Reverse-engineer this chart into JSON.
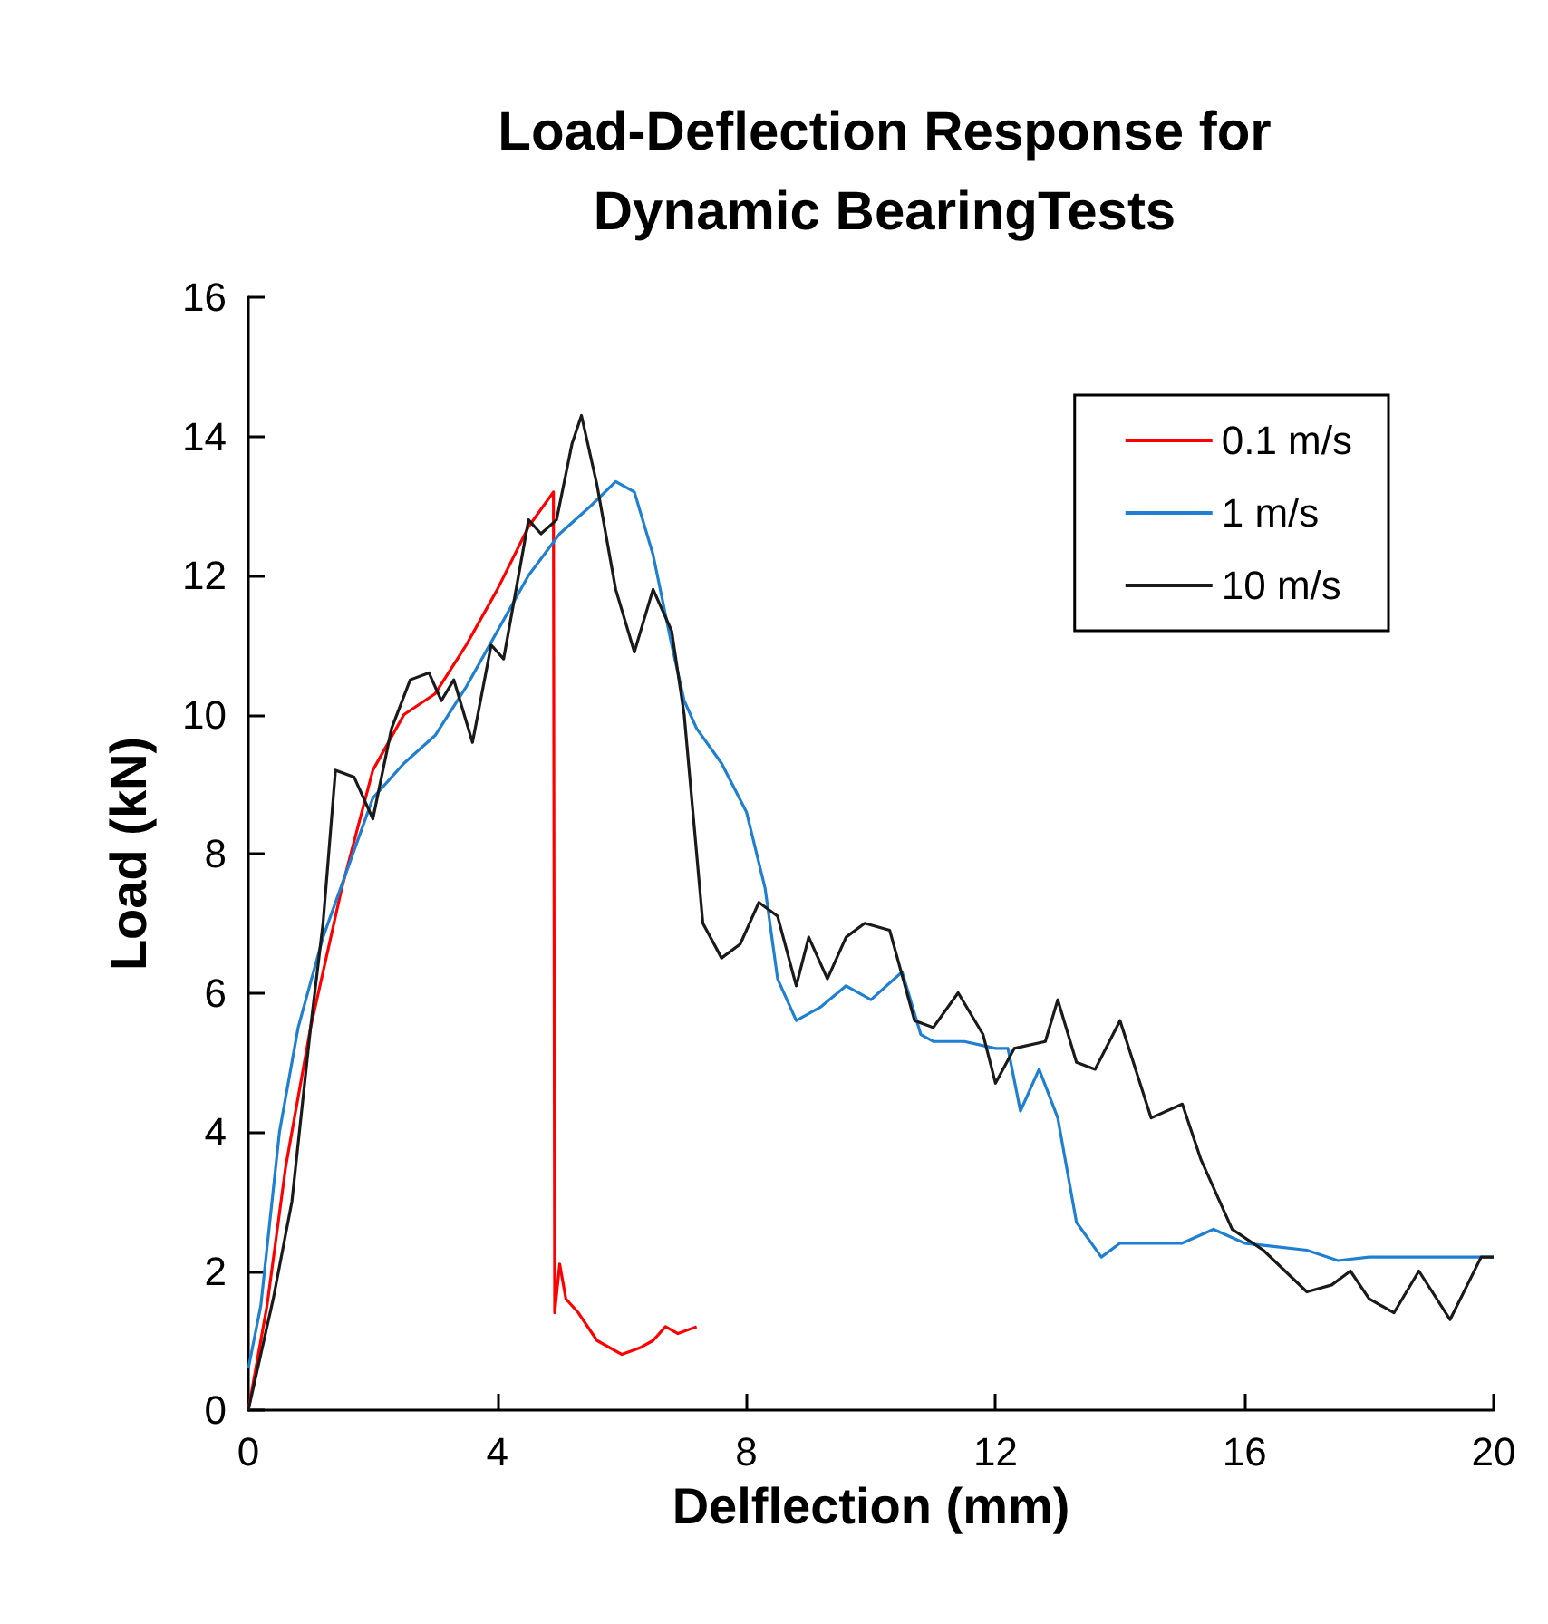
{
  "chart_data": {
    "type": "line",
    "title": "Load-Deflection Response for\nDynamic BearingTests",
    "xlabel": "Delflection (mm)",
    "ylabel": "Load (kN)",
    "xlim": [
      0,
      20
    ],
    "xticks": [
      0,
      4,
      8,
      12,
      16,
      20
    ],
    "ylim": [
      0,
      16
    ],
    "yticks": [
      0,
      2,
      4,
      6,
      8,
      10,
      12,
      14,
      16
    ],
    "legend": "top right",
    "marker": "none",
    "line_style": "solid",
    "series": [
      {
        "name": "0.1 m/s",
        "color": "#ff0000",
        "x": [
          0,
          0.3,
          0.6,
          1,
          1.5,
          2,
          2.5,
          3,
          3.5,
          4,
          4.5,
          4.9,
          4.92,
          5,
          5.1,
          5.3,
          5.6,
          6,
          6.3,
          6.5,
          6.7,
          6.9,
          7.2
        ],
        "values": [
          0,
          1.5,
          3.5,
          5.5,
          7.5,
          9.2,
          10,
          10.3,
          11,
          11.8,
          12.7,
          13.2,
          1.4,
          2.1,
          1.6,
          1.4,
          1,
          0.8,
          0.9,
          1,
          1.2,
          1.1,
          1.2
        ]
      },
      {
        "name": "1 m/s",
        "color": "#1f7fd0",
        "x": [
          0,
          0.2,
          0.5,
          0.8,
          1.2,
          1.6,
          2,
          2.5,
          3,
          3.5,
          4,
          4.5,
          5,
          5.5,
          5.9,
          6.2,
          6.5,
          6.8,
          7,
          7.2,
          7.6,
          8,
          8.3,
          8.5,
          8.8,
          9.2,
          9.6,
          10,
          10.5,
          10.8,
          11,
          11.5,
          12,
          12.2,
          12.4,
          12.7,
          13,
          13.3,
          13.7,
          14,
          14.5,
          15,
          15.5,
          16,
          16.5,
          17,
          17.5,
          18,
          19,
          20
        ],
        "values": [
          0.6,
          1.5,
          4,
          5.5,
          6.8,
          7.8,
          8.8,
          9.3,
          9.7,
          10.4,
          11.2,
          12,
          12.6,
          13,
          13.35,
          13.2,
          12.3,
          11,
          10.2,
          9.8,
          9.3,
          8.6,
          7.5,
          6.2,
          5.6,
          5.8,
          6.1,
          5.9,
          6.3,
          5.4,
          5.3,
          5.3,
          5.2,
          5.2,
          4.3,
          4.9,
          4.2,
          2.7,
          2.2,
          2.4,
          2.4,
          2.4,
          2.6,
          2.4,
          2.35,
          2.3,
          2.15,
          2.2,
          2.2,
          2.2
        ]
      },
      {
        "name": "10 m/s",
        "color": "#1a1a1a",
        "x": [
          0,
          0.4,
          0.7,
          1,
          1.2,
          1.4,
          1.7,
          2,
          2.3,
          2.6,
          2.9,
          3.1,
          3.3,
          3.6,
          3.9,
          4.1,
          4.5,
          4.7,
          4.95,
          5.2,
          5.35,
          5.6,
          5.9,
          6.2,
          6.5,
          6.8,
          7,
          7.3,
          7.6,
          7.9,
          8.2,
          8.5,
          8.8,
          9,
          9.3,
          9.6,
          9.9,
          10.3,
          10.7,
          11,
          11.4,
          11.8,
          12,
          12.3,
          12.8,
          13,
          13.3,
          13.6,
          14,
          14.5,
          15,
          15.3,
          15.8,
          16.3,
          17,
          17.4,
          17.7,
          18,
          18.4,
          18.8,
          19.3,
          19.8,
          20
        ],
        "values": [
          0,
          1.6,
          3,
          5.5,
          7,
          9.2,
          9.1,
          8.5,
          9.8,
          10.5,
          10.6,
          10.2,
          10.5,
          9.6,
          11,
          10.8,
          12.8,
          12.6,
          12.8,
          13.9,
          14.3,
          13.3,
          11.8,
          10.9,
          11.8,
          11.2,
          10,
          7,
          6.5,
          6.7,
          7.3,
          7.1,
          6.1,
          6.8,
          6.2,
          6.8,
          7,
          6.9,
          5.6,
          5.5,
          6,
          5.4,
          4.7,
          5.2,
          5.3,
          5.9,
          5,
          4.9,
          5.6,
          4.2,
          4.4,
          3.6,
          2.6,
          2.3,
          1.7,
          1.8,
          2,
          1.6,
          1.4,
          2,
          1.3,
          2.2,
          2.2
        ]
      }
    ]
  }
}
